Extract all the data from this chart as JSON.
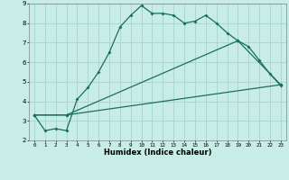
{
  "xlabel": "Humidex (Indice chaleur)",
  "background_color": "#c8ece6",
  "grid_color": "#a8d8d0",
  "line_color": "#1a6e62",
  "xlim": [
    -0.5,
    23.5
  ],
  "ylim": [
    2,
    9
  ],
  "xticks": [
    0,
    1,
    2,
    3,
    4,
    5,
    6,
    7,
    8,
    9,
    10,
    11,
    12,
    13,
    14,
    15,
    16,
    17,
    18,
    19,
    20,
    21,
    22,
    23
  ],
  "yticks": [
    2,
    3,
    4,
    5,
    6,
    7,
    8,
    9
  ],
  "line1_x": [
    0,
    1,
    2,
    3,
    4,
    5,
    6,
    7,
    8,
    9,
    10,
    11,
    12,
    13,
    14,
    15,
    16,
    17,
    18,
    19,
    20,
    21,
    22,
    23
  ],
  "line1_y": [
    3.3,
    2.5,
    2.6,
    2.5,
    4.1,
    4.7,
    5.5,
    6.5,
    7.8,
    8.4,
    8.9,
    8.5,
    8.5,
    8.4,
    8.0,
    8.1,
    8.4,
    8.0,
    7.5,
    7.1,
    6.8,
    6.1,
    5.4,
    4.8
  ],
  "line2_x": [
    0,
    3,
    23
  ],
  "line2_y": [
    3.3,
    3.3,
    4.85
  ],
  "line3_x": [
    0,
    3,
    19,
    23
  ],
  "line3_y": [
    3.3,
    3.3,
    7.1,
    4.85
  ]
}
